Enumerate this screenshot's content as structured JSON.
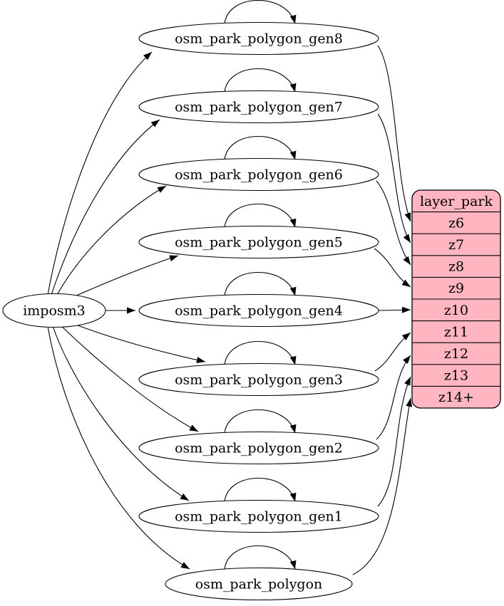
{
  "diagram": {
    "background": "#ffffff",
    "edge_color": "#000000",
    "node_outline_color": "#000000",
    "node_fill": "#ffffff",
    "text_color": "#000000",
    "source": {
      "label": "imposm3"
    },
    "tables": [
      {
        "label": "osm_park_polygon_gen8",
        "target_zoom": "z6"
      },
      {
        "label": "osm_park_polygon_gen7",
        "target_zoom": "z7"
      },
      {
        "label": "osm_park_polygon_gen6",
        "target_zoom": "z8"
      },
      {
        "label": "osm_park_polygon_gen5",
        "target_zoom": "z9"
      },
      {
        "label": "osm_park_polygon_gen4",
        "target_zoom": "z10"
      },
      {
        "label": "osm_park_polygon_gen3",
        "target_zoom": "z11"
      },
      {
        "label": "osm_park_polygon_gen2",
        "target_zoom": "z12"
      },
      {
        "label": "osm_park_polygon_gen1",
        "target_zoom": "z13"
      },
      {
        "label": "osm_park_polygon",
        "target_zoom": "z14+"
      }
    ],
    "each_table_has_self_loop": true,
    "layer_table": {
      "title": "layer_park",
      "rows": [
        "z6",
        "z7",
        "z8",
        "z9",
        "z10",
        "z11",
        "z12",
        "z13",
        "z14+"
      ],
      "fill": "#ffb6c1",
      "outline": "#000000"
    }
  }
}
